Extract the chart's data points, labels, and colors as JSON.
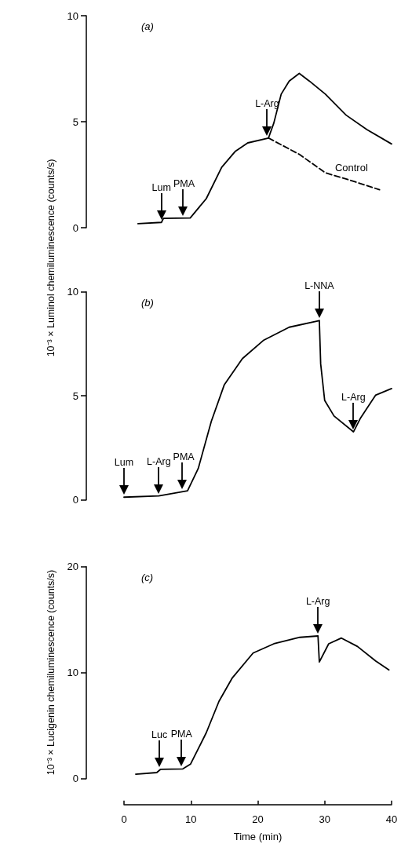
{
  "chart_data": [
    {
      "type": "line",
      "title": "(a)",
      "ylabel": "10⁻³ × Luminol chemiluminescence (counts/s)",
      "xlim": [
        0,
        40
      ],
      "xticks": [
        0,
        10,
        20,
        30,
        40
      ],
      "ylim": [
        0,
        10
      ],
      "yticks": [
        0,
        5,
        10
      ],
      "tick_labels": "y",
      "grid": false,
      "legend": false,
      "marker": "none",
      "series": [
        {
          "color": "#000000",
          "line_style": "solid",
          "x": [
            2.1,
            5.6,
            5.9,
            9.9,
            12.3,
            14.6,
            16.6,
            18.5,
            21.6,
            22.4,
            23.5,
            24.7,
            26.2,
            27.7,
            30.1,
            33.2,
            36.3,
            40.0
          ],
          "values": [
            0.19,
            0.25,
            0.44,
            0.46,
            1.37,
            2.85,
            3.59,
            4.0,
            4.23,
            4.94,
            6.3,
            6.92,
            7.28,
            6.92,
            6.3,
            5.31,
            4.63,
            3.95
          ]
        },
        {
          "name": "Control",
          "color": "#000000",
          "line_style": "dashed",
          "x": [
            21.6,
            26.2,
            30.1,
            34.0,
            38.2
          ],
          "values": [
            4.23,
            3.46,
            2.59,
            2.22,
            1.79
          ]
        }
      ],
      "annotations": [
        {
          "text": "Lum",
          "x": 5.6,
          "y": 0.25
        },
        {
          "text": "PMA",
          "x": 8.8,
          "y": 0.46
        },
        {
          "text": "L-Arg",
          "x": 21.4,
          "y": 4.23
        }
      ]
    },
    {
      "type": "line",
      "title": "(b)",
      "xlim": [
        0,
        40
      ],
      "xticks": [
        0,
        10,
        20,
        30,
        40
      ],
      "ylim": [
        0,
        10
      ],
      "yticks": [
        0,
        5,
        10
      ],
      "tick_labels": "y",
      "grid": false,
      "legend": false,
      "marker": "none",
      "series": [
        {
          "color": "#000000",
          "line_style": "solid",
          "x": [
            0.0,
            5.2,
            9.5,
            11.1,
            13.05,
            15.0,
            17.7,
            20.9,
            24.7,
            29.2,
            29.4,
            30.0,
            31.4,
            34.3,
            35.3,
            37.6,
            40.0
          ],
          "values": [
            0.13,
            0.19,
            0.44,
            1.51,
            3.77,
            5.54,
            6.79,
            7.68,
            8.3,
            8.62,
            6.54,
            4.78,
            4.03,
            3.27,
            3.9,
            5.03,
            5.35
          ]
        }
      ],
      "annotations": [
        {
          "text": "Lum",
          "x": 0.0,
          "y": 0.13
        },
        {
          "text": "L-Arg",
          "x": 5.2,
          "y": 0.19
        },
        {
          "text": "PMA",
          "x": 8.7,
          "y": 0.4
        },
        {
          "text": "L-NNA",
          "x": 29.2,
          "y": 8.62
        },
        {
          "text": "L-Arg",
          "x": 34.3,
          "y": 3.27
        }
      ]
    },
    {
      "type": "line",
      "title": "(c)",
      "xlabel": "Time (min)",
      "ylabel": "10⁻³ × Lucigenin chemiluminescence (counts/s)",
      "xlim": [
        0,
        40
      ],
      "xticks": [
        0,
        10,
        20,
        30,
        40
      ],
      "ylim": [
        0,
        20
      ],
      "yticks": [
        0,
        10,
        20
      ],
      "grid": false,
      "legend": false,
      "marker": "none",
      "series": [
        {
          "color": "#000000",
          "line_style": "solid",
          "x": [
            1.75,
            4.9,
            5.45,
            8.8,
            9.94,
            12.3,
            14.2,
            16.2,
            19.3,
            22.4,
            26.3,
            29.0,
            29.2,
            30.6,
            32.5,
            34.9,
            37.6,
            39.6
          ],
          "values": [
            0.42,
            0.57,
            0.87,
            0.92,
            1.36,
            4.33,
            7.29,
            9.51,
            11.85,
            12.72,
            13.33,
            13.46,
            11.0,
            12.72,
            13.26,
            12.47,
            11.11,
            10.25
          ]
        }
      ],
      "annotations": [
        {
          "text": "Luc",
          "x": 5.3,
          "y": 0.87
        },
        {
          "text": "PMA",
          "x": 8.6,
          "y": 0.92
        },
        {
          "text": "L-Arg",
          "x": 29.0,
          "y": 13.46
        }
      ]
    }
  ]
}
